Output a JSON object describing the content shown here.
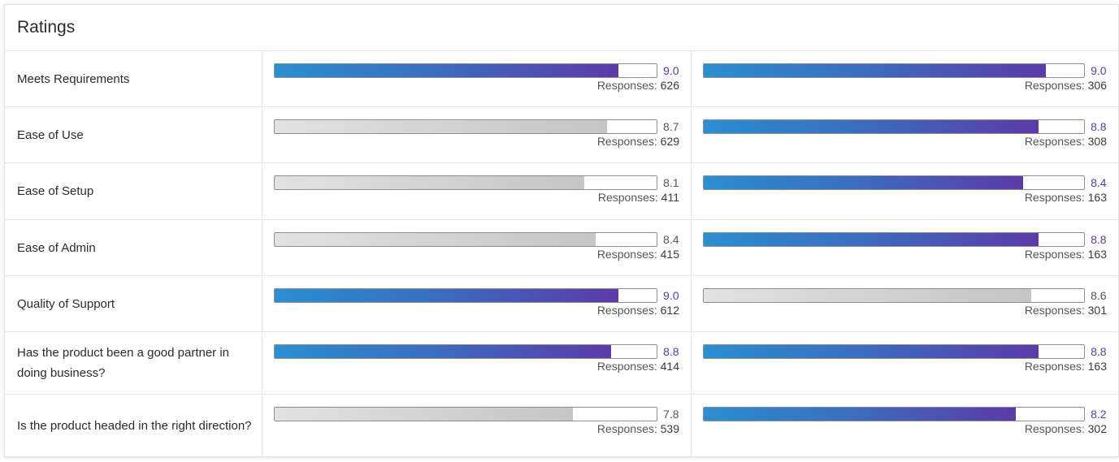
{
  "card": {
    "title": "Ratings"
  },
  "responses_label": "Responses:",
  "colors": {
    "highlight_start": "#2a8fd0",
    "highlight_end": "#5c3aa8",
    "neutral": "#d0d0d0"
  },
  "rows": [
    {
      "label": "Meets Requirements",
      "left": {
        "score": "9.0",
        "responses": "626",
        "highlight": true
      },
      "right": {
        "score": "9.0",
        "responses": "306",
        "highlight": true
      }
    },
    {
      "label": "Ease of Use",
      "left": {
        "score": "8.7",
        "responses": "629",
        "highlight": false
      },
      "right": {
        "score": "8.8",
        "responses": "308",
        "highlight": true
      }
    },
    {
      "label": "Ease of Setup",
      "left": {
        "score": "8.1",
        "responses": "411",
        "highlight": false
      },
      "right": {
        "score": "8.4",
        "responses": "163",
        "highlight": true
      }
    },
    {
      "label": "Ease of Admin",
      "left": {
        "score": "8.4",
        "responses": "415",
        "highlight": false
      },
      "right": {
        "score": "8.8",
        "responses": "163",
        "highlight": true
      }
    },
    {
      "label": "Quality of Support",
      "left": {
        "score": "9.0",
        "responses": "612",
        "highlight": true
      },
      "right": {
        "score": "8.6",
        "responses": "301",
        "highlight": false
      }
    },
    {
      "label": "Has the product been a good partner in doing business?",
      "left": {
        "score": "8.8",
        "responses": "414",
        "highlight": true
      },
      "right": {
        "score": "8.8",
        "responses": "163",
        "highlight": true
      }
    },
    {
      "label": "Is the product headed in the right direction?",
      "left": {
        "score": "7.8",
        "responses": "539",
        "highlight": false
      },
      "right": {
        "score": "8.2",
        "responses": "302",
        "highlight": true
      }
    }
  ]
}
